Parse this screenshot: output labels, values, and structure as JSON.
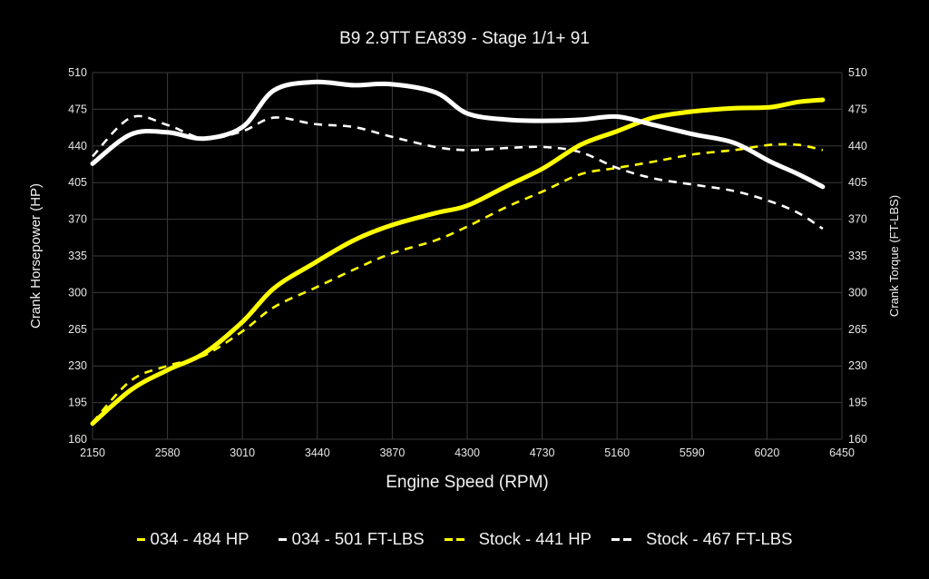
{
  "chart_data": {
    "type": "line",
    "title": "B9 2.9TT EA839 - Stage 1/1+ 91",
    "xlabel": "Engine Speed (RPM)",
    "ylabel": "Crank Horsepower (HP)",
    "ylabel_right": "Crank Torque (FT-LBS)",
    "xlim": [
      2150,
      6450
    ],
    "ylim": [
      160,
      510
    ],
    "ylim_right": [
      160,
      510
    ],
    "grid": true,
    "legend_position": "bottom",
    "x_ticks": [
      "2150",
      "2580",
      "3010",
      "3440",
      "3870",
      "4300",
      "4730",
      "5160",
      "5590",
      "6020",
      "6450"
    ],
    "y_ticks": [
      "160",
      "195",
      "230",
      "265",
      "300",
      "335",
      "370",
      "405",
      "440",
      "475",
      "510"
    ],
    "y_ticks_right": [
      "160",
      "195",
      "230",
      "265",
      "300",
      "335",
      "370",
      "405",
      "440",
      "475",
      "510"
    ],
    "x": [
      2150,
      2370,
      2580,
      2790,
      3010,
      3190,
      3420,
      3650,
      3860,
      4120,
      4300,
      4530,
      4740,
      4950,
      5160,
      5370,
      5600,
      5830,
      6040,
      6200,
      6340
    ],
    "series": [
      {
        "name": "034 - 484 HP",
        "color": "#ffff00",
        "style": "solid",
        "axis": "left",
        "values": [
          175,
          207,
          226,
          242,
          272,
          304,
          328,
          350,
          364,
          376,
          383,
          402,
          419,
          441,
          454,
          467,
          473,
          476,
          477,
          482,
          484
        ]
      },
      {
        "name": "034 - 501 FT-LBS",
        "color": "#ffffff",
        "style": "solid",
        "axis": "right",
        "values": [
          423,
          451,
          453,
          447,
          458,
          493,
          501,
          498,
          499,
          491,
          471,
          465,
          464,
          465,
          468,
          460,
          451,
          443,
          425,
          413,
          401
        ]
      },
      {
        "name": "Stock - 441 HP",
        "color": "#ffff00",
        "style": "dashed",
        "axis": "left",
        "values": [
          176,
          216,
          230,
          240,
          263,
          286,
          304,
          322,
          337,
          350,
          363,
          382,
          397,
          413,
          419,
          425,
          432,
          436,
          441,
          441,
          436
        ]
      },
      {
        "name": "Stock - 467 FT-LBS",
        "color": "#ffffff",
        "style": "dashed",
        "axis": "right",
        "values": [
          430,
          467,
          460,
          447,
          454,
          467,
          461,
          458,
          449,
          439,
          436,
          438,
          439,
          434,
          419,
          409,
          403,
          397,
          387,
          376,
          361
        ]
      }
    ]
  },
  "legend": [
    {
      "label": "034 - 484 HP",
      "color": "#ffff00",
      "style": "solid"
    },
    {
      "label": "034 - 501 FT-LBS",
      "color": "#ffffff",
      "style": "solid"
    },
    {
      "label": "Stock - 441 HP",
      "color": "#ffff00",
      "style": "dashed"
    },
    {
      "label": "Stock - 467 FT-LBS",
      "color": "#ffffff",
      "style": "dashed"
    }
  ],
  "colors": {
    "background": "#000000",
    "grid": "#3a3a3a",
    "tuned_hp": "#ffff00",
    "torque": "#ffffff"
  }
}
